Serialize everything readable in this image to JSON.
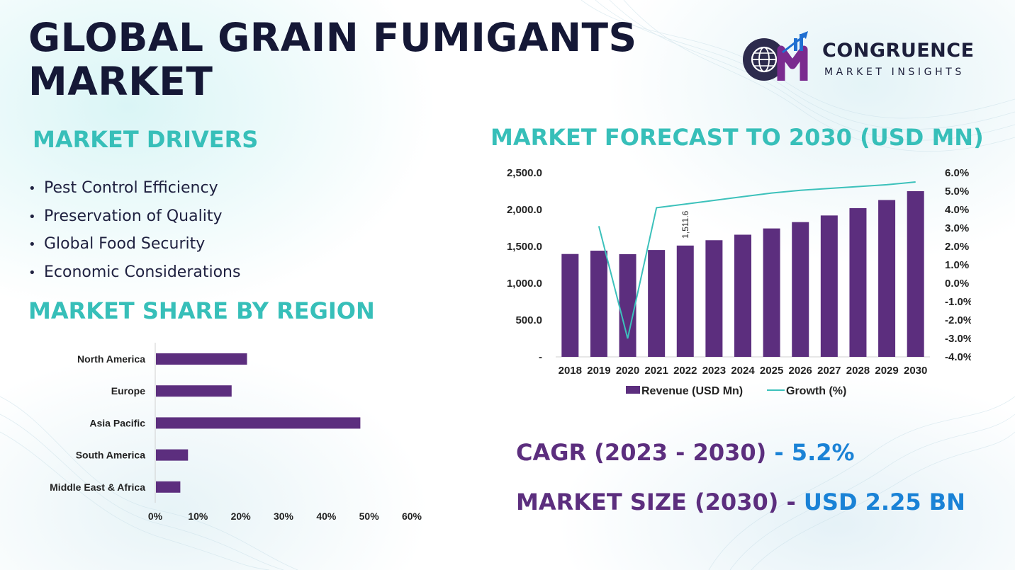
{
  "title_line1": "GLOBAL GRAIN FUMIGANTS",
  "title_line2": "MARKET",
  "logo": {
    "name": "CONGRUENCE",
    "subtitle": "MARKET INSIGHTS",
    "mark_icon": "globe-cm-growth-icon",
    "colors": [
      "#2d2b4d",
      "#7a2b8f",
      "#1f6fd1"
    ]
  },
  "drivers": {
    "heading": "MARKET DRIVERS",
    "items": [
      "Pest Control Efficiency",
      "Preservation of Quality",
      "Global Food Security",
      "Economic Considerations"
    ]
  },
  "region": {
    "heading": "MARKET SHARE BY REGION"
  },
  "forecast": {
    "heading": "MARKET FORECAST TO 2030 (USD MN)"
  },
  "stats": {
    "cagr_label": "CAGR (2023 - 2030)",
    "cagr_value": "- 5.2%",
    "size_label": "MARKET SIZE (2030) -",
    "size_value": "USD 2.25 BN"
  },
  "colors": {
    "heading": "#37bfb9",
    "bar": "#5c2e7e",
    "line": "#3cc1bb",
    "title": "#151836",
    "value": "#1a82d6"
  },
  "chart_data": [
    {
      "type": "bar",
      "orientation": "horizontal",
      "categories": [
        "North America",
        "Europe",
        "Asia Pacific",
        "South America",
        "Middle East & Africa"
      ],
      "values": [
        21.3,
        17.7,
        47.8,
        7.5,
        5.7
      ],
      "xlim": [
        0,
        60
      ],
      "x_ticks": [
        0,
        10,
        20,
        30,
        40,
        50,
        60
      ],
      "x_tick_labels": [
        "0%",
        "10%",
        "20%",
        "30%",
        "40%",
        "50%",
        "60%"
      ],
      "grid": false
    },
    {
      "type": "bar",
      "categories": [
        "2018",
        "2019",
        "2020",
        "2021",
        "2022",
        "2023",
        "2024",
        "2025",
        "2026",
        "2027",
        "2028",
        "2029",
        "2030"
      ],
      "series": [
        {
          "name": "Revenue (USD Mn)",
          "axis": "left",
          "values": [
            1397,
            1442,
            1395,
            1451,
            1511.6,
            1584,
            1659,
            1744,
            1830,
            1920,
            2020,
            2130,
            2250
          ]
        },
        {
          "name": "Growth (%)",
          "type": "line",
          "axis": "right",
          "values": [
            null,
            3.1,
            -3.0,
            4.1,
            4.3,
            4.5,
            4.7,
            4.9,
            5.05,
            5.15,
            5.25,
            5.35,
            5.5
          ]
        }
      ],
      "data_labels": [
        {
          "category": "2022",
          "text": "1,511.6"
        }
      ],
      "y_left": {
        "range": [
          0,
          2500
        ],
        "ticks": [
          0,
          500,
          1000,
          1500,
          2000,
          2500
        ],
        "tick_labels": [
          "-",
          "500.0",
          "1,000.0",
          "1,500.0",
          "2,000.0",
          "2,500.0"
        ]
      },
      "y_right": {
        "range": [
          -4,
          6
        ],
        "ticks": [
          -4,
          -3,
          -2,
          -1,
          0,
          1,
          2,
          3,
          4,
          5,
          6
        ],
        "tick_labels": [
          "-4.0%",
          "-3.0%",
          "-2.0%",
          "-1.0%",
          "0.0%",
          "1.0%",
          "2.0%",
          "3.0%",
          "4.0%",
          "5.0%",
          "6.0%"
        ]
      },
      "legend": "bottom",
      "grid": false
    }
  ]
}
